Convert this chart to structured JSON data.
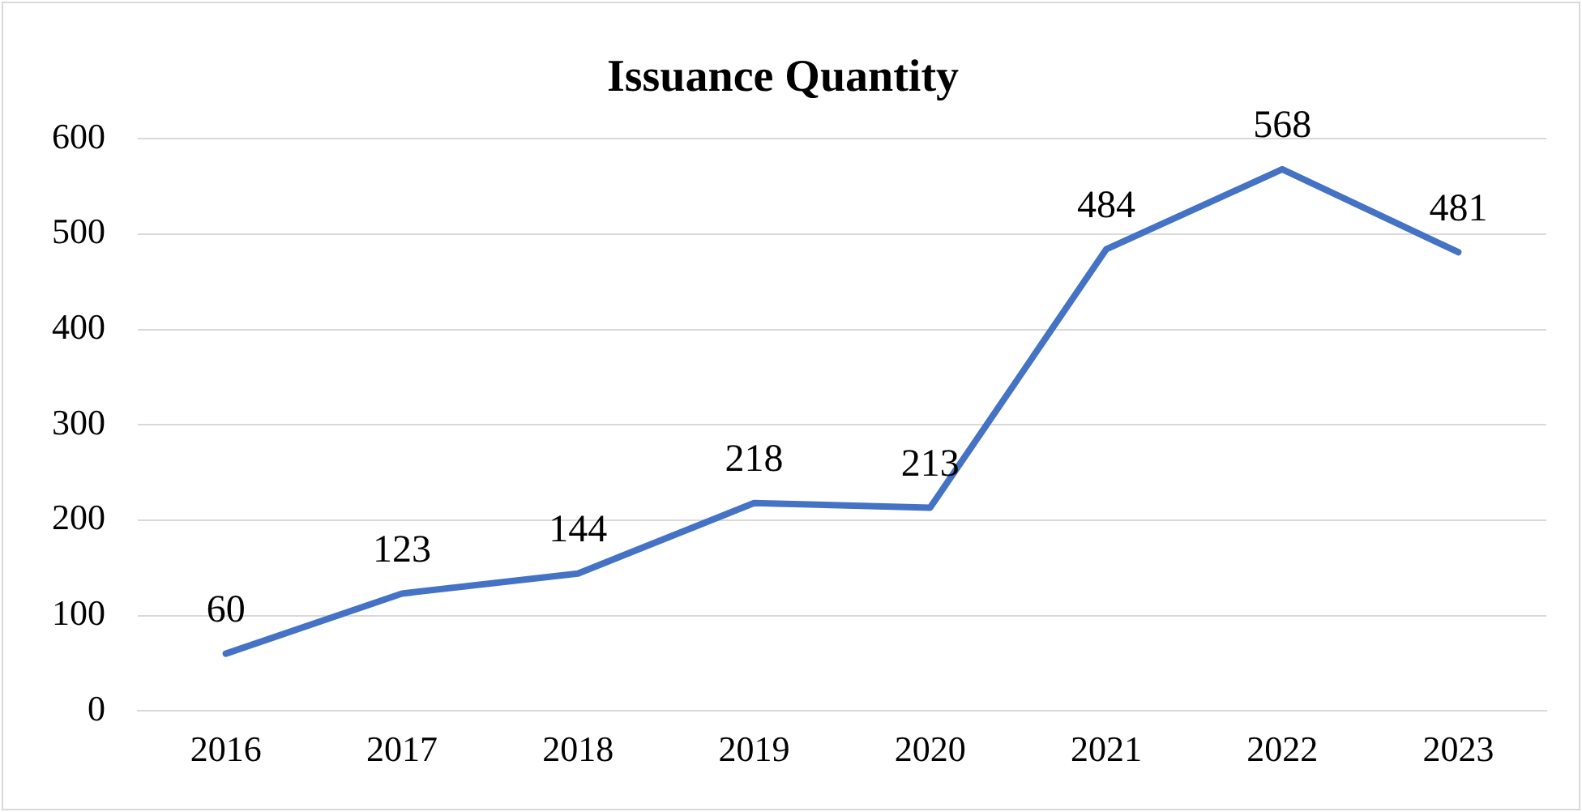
{
  "chart_data": {
    "type": "line",
    "title": "Issuance Quantity",
    "categories": [
      "2016",
      "2017",
      "2018",
      "2019",
      "2020",
      "2021",
      "2022",
      "2023"
    ],
    "series": [
      {
        "color": "#4472c4",
        "values": [
          60,
          123,
          144,
          218,
          213,
          484,
          568,
          481
        ]
      }
    ],
    "ylim": [
      0,
      600
    ],
    "yticks": [
      0,
      100,
      200,
      300,
      400,
      500,
      600
    ],
    "grid": "y",
    "legend": false,
    "marker": "none",
    "data_labels": true
  }
}
